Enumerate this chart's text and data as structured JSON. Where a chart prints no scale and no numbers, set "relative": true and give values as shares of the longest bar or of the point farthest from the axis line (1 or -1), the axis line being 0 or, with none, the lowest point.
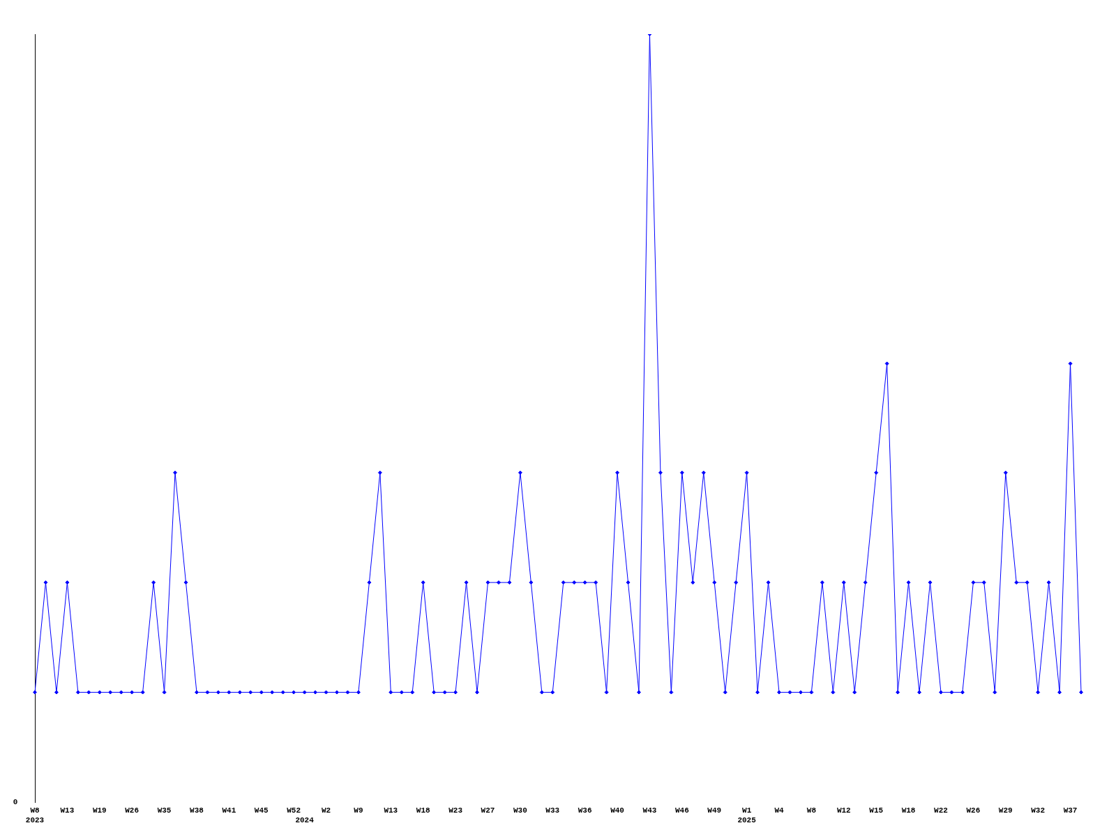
{
  "chart_data": {
    "type": "line",
    "relative": true,
    "grid": false,
    "legend": false,
    "marker": "diamond",
    "line_style": "solid",
    "categories": [
      "W8\n2023",
      null,
      null,
      "W13",
      null,
      null,
      "W19",
      null,
      null,
      "W26",
      null,
      null,
      "W35",
      null,
      null,
      "W38",
      null,
      null,
      "W41",
      null,
      null,
      "W45",
      null,
      null,
      "W52",
      "\n2024",
      null,
      "W2",
      null,
      null,
      "W9",
      null,
      null,
      "W13",
      null,
      null,
      "W18",
      null,
      null,
      "W23",
      null,
      null,
      "W27",
      null,
      null,
      "W30",
      null,
      null,
      "W33",
      null,
      null,
      "W36",
      null,
      null,
      "W40",
      null,
      null,
      "W43",
      null,
      null,
      "W46",
      null,
      null,
      "W49",
      null,
      null,
      "W1\n2025",
      null,
      null,
      "W4",
      null,
      null,
      "W8",
      null,
      null,
      "W12",
      null,
      null,
      "W15",
      null,
      null,
      "W18",
      null,
      null,
      "W22",
      null,
      null,
      "W26",
      null,
      null,
      "W29",
      null,
      null,
      "W32",
      null,
      null,
      "W37",
      null
    ],
    "series": [
      {
        "color": "#0000ff",
        "values": [
          0.143,
          0.286,
          0.143,
          0.286,
          0.143,
          0.143,
          0.143,
          0.143,
          0.143,
          0.143,
          0.143,
          0.286,
          0.143,
          0.429,
          0.286,
          0.143,
          0.143,
          0.143,
          0.143,
          0.143,
          0.143,
          0.143,
          0.143,
          0.143,
          0.143,
          0.143,
          0.143,
          0.143,
          0.143,
          0.143,
          0.143,
          0.286,
          0.429,
          0.143,
          0.143,
          0.143,
          0.286,
          0.143,
          0.143,
          0.143,
          0.286,
          0.143,
          0.286,
          0.286,
          0.286,
          0.429,
          0.286,
          0.143,
          0.143,
          0.286,
          0.286,
          0.286,
          0.286,
          0.143,
          0.429,
          0.286,
          0.143,
          1,
          0.429,
          0.143,
          0.429,
          0.286,
          0.429,
          0.286,
          0.143,
          0.286,
          0.429,
          0.143,
          0.286,
          0.143,
          0.143,
          0.143,
          0.143,
          0.286,
          0.143,
          0.286,
          0.143,
          0.286,
          0.429,
          0.571,
          0.143,
          0.286,
          0.143,
          0.286,
          0.143,
          0.143,
          0.143,
          0.286,
          0.286,
          0.143,
          0.429,
          0.286,
          0.286,
          0.143,
          0.286,
          0.143,
          0.571,
          0.143
        ]
      }
    ],
    "annotations": [
      "0"
    ]
  }
}
